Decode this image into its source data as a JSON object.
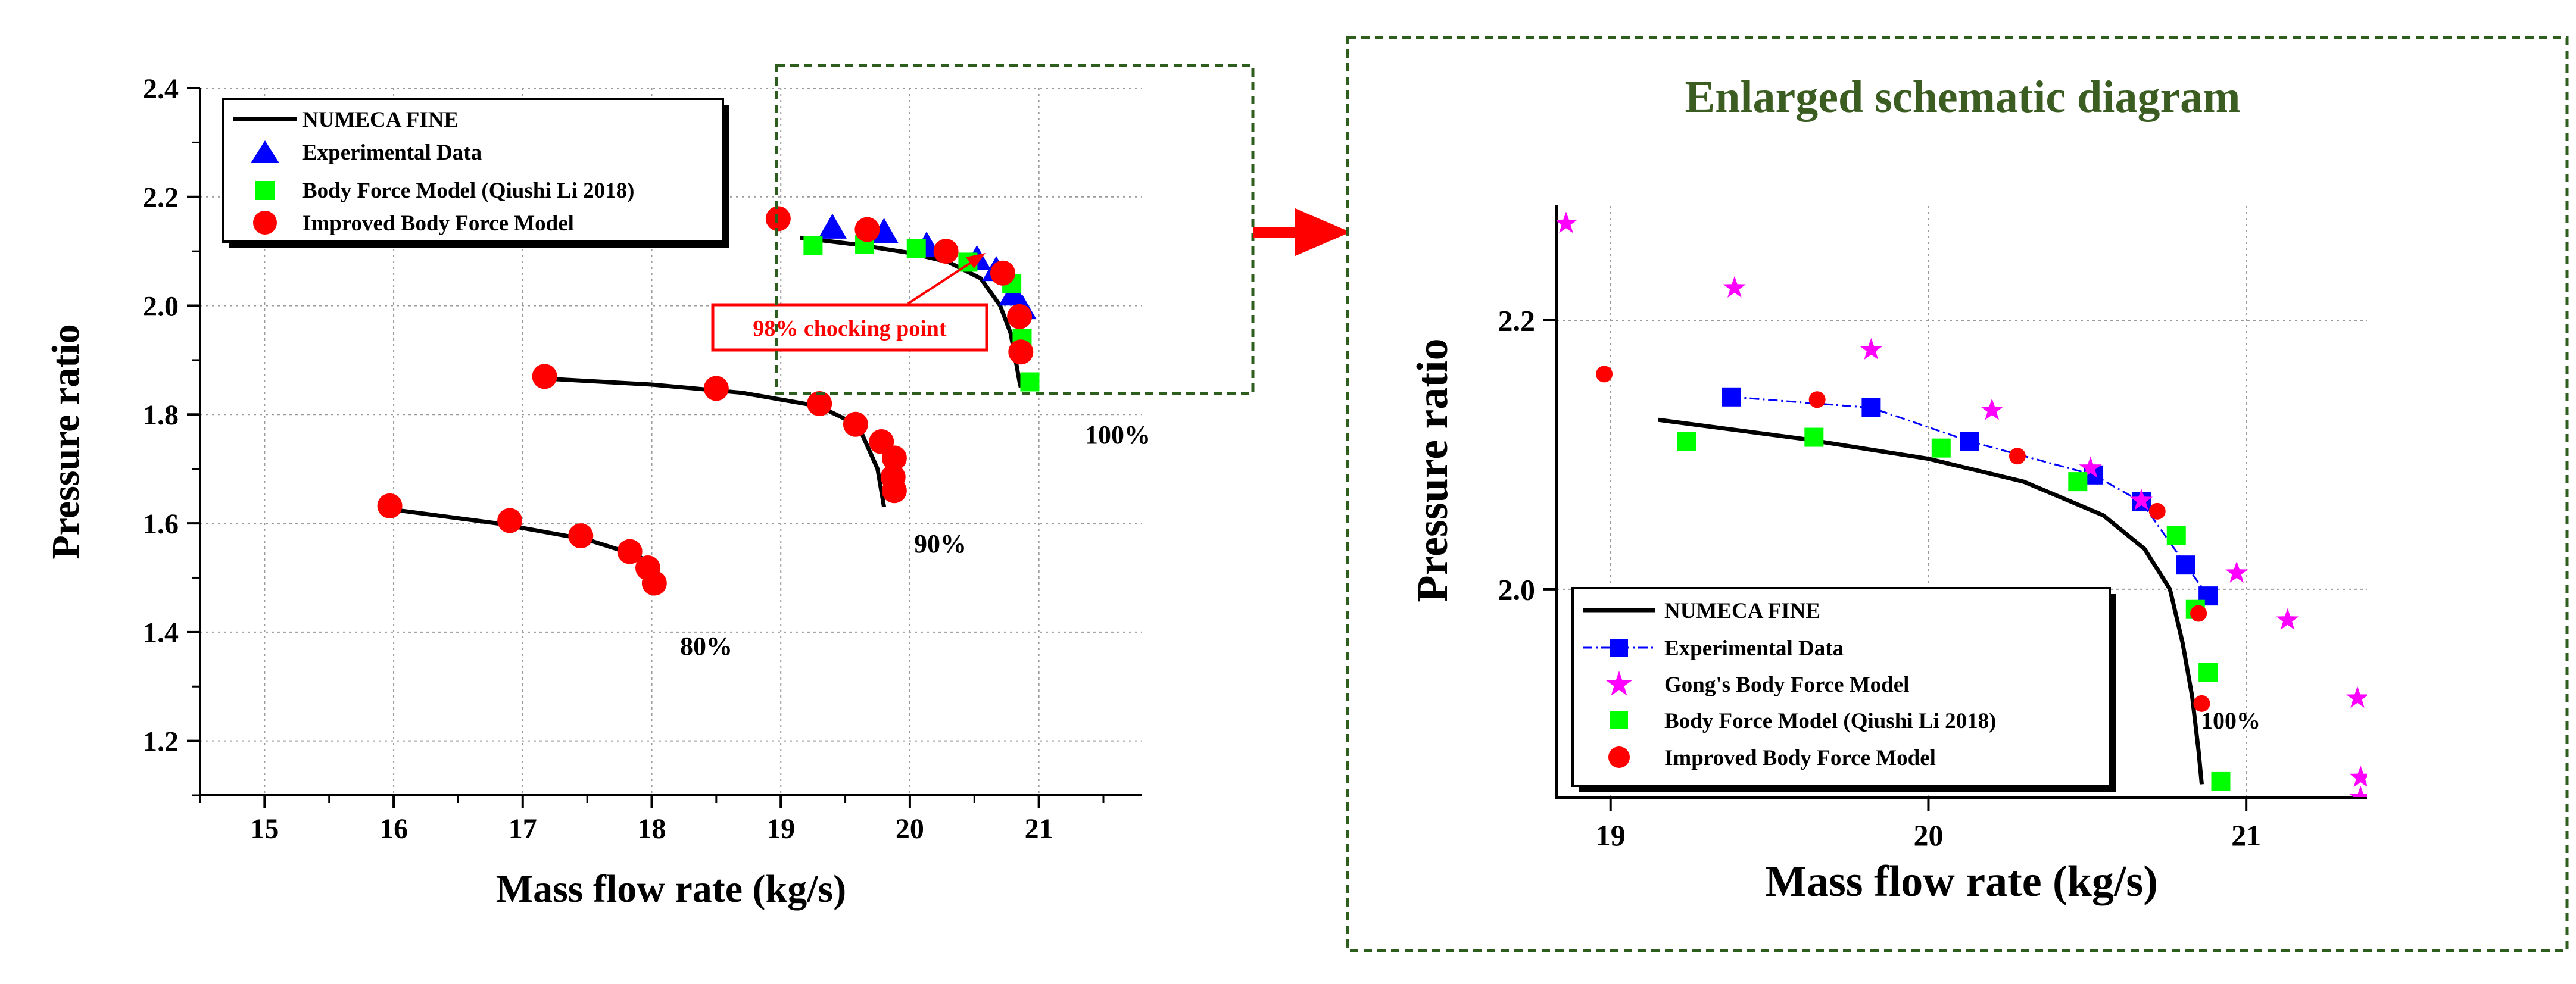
{
  "colors": {
    "model": "#000000",
    "experimental": "#0000ff",
    "qiushi": "#00ff00",
    "improved": "#ff0000",
    "gong": "#ff00ff",
    "dashed_box": "#2e5e1e",
    "title_green": "#3b5d22",
    "grid": "#9a9a9a",
    "callout": "#ff0000"
  },
  "arrow_icon": "right-arrow-icon",
  "chart_data": [
    {
      "type": "scatter",
      "title": "",
      "xlabel": "Mass flow rate (kg/s)",
      "ylabel": "Pressure ratio",
      "xlim": [
        14.5,
        21.8
      ],
      "ylim": [
        1.1,
        2.4
      ],
      "xticks": [
        15,
        16,
        17,
        18,
        19,
        20,
        21
      ],
      "xticklabels": [
        "15",
        "16",
        "17",
        "18",
        "19",
        "20",
        "21"
      ],
      "yticks": [
        1.2,
        1.4,
        1.6,
        1.8,
        2.0,
        2.2,
        2.4
      ],
      "yticklabels": [
        "1.2",
        "1.4",
        "1.6",
        "1.8",
        "2.0",
        "2.2",
        "2.4"
      ],
      "grid": true,
      "legend_position": "top-left",
      "legend": [
        "NUMECA FINE",
        "Experimental Data",
        "Body Force Model (Qiushi Li 2018)",
        "Improved Body Force Model"
      ],
      "series": [
        {
          "name": "NUMECA FINE 100%",
          "kind": "line",
          "x": [
            19.15,
            19.6,
            20.0,
            20.3,
            20.55,
            20.7,
            20.78,
            20.82,
            20.85,
            20.86
          ],
          "y": [
            2.125,
            2.112,
            2.097,
            2.08,
            2.05,
            2.0,
            1.95,
            1.9,
            1.86,
            1.85
          ]
        },
        {
          "name": "NUMECA FINE 90%",
          "kind": "line",
          "x": [
            17.25,
            18.0,
            18.7,
            19.3,
            19.6,
            19.75,
            19.8
          ],
          "y": [
            1.865,
            1.855,
            1.84,
            1.815,
            1.78,
            1.7,
            1.63
          ]
        },
        {
          "name": "NUMECA FINE 80%",
          "kind": "line",
          "x": [
            16.0,
            16.8,
            17.5,
            17.9,
            18.0
          ],
          "y": [
            1.625,
            1.6,
            1.57,
            1.54,
            1.52
          ]
        },
        {
          "name": "Experimental Data",
          "kind": "triangle",
          "x": [
            19.4,
            19.8,
            20.13,
            20.52,
            20.67,
            20.8,
            20.87
          ],
          "y": [
            2.143,
            2.135,
            2.11,
            2.085,
            2.065,
            2.02,
            1.995
          ]
        },
        {
          "name": "Body Force Model (Qiushi Li 2018)",
          "kind": "square",
          "x": [
            19.25,
            19.65,
            20.05,
            20.45,
            20.79,
            20.87,
            20.93
          ],
          "y": [
            2.11,
            2.113,
            2.105,
            2.08,
            2.04,
            1.94,
            1.86
          ]
        },
        {
          "name": "Improved Body Force Model 100%",
          "kind": "circle",
          "x": [
            18.98,
            19.67,
            20.28,
            20.72,
            20.85,
            20.86
          ],
          "y": [
            2.16,
            2.14,
            2.1,
            2.06,
            1.98,
            1.915
          ]
        },
        {
          "name": "Improved Body Force Model 90%",
          "kind": "circle",
          "x": [
            17.17,
            18.5,
            19.3,
            19.58,
            19.78,
            19.88,
            19.87,
            19.88
          ],
          "y": [
            1.87,
            1.848,
            1.82,
            1.782,
            1.75,
            1.72,
            1.685,
            1.66
          ]
        },
        {
          "name": "Improved Body Force Model 80%",
          "kind": "circle",
          "x": [
            15.97,
            16.9,
            17.45,
            17.83,
            17.97,
            18.02
          ],
          "y": [
            1.632,
            1.605,
            1.577,
            1.548,
            1.518,
            1.49
          ]
        }
      ],
      "annotations": [
        {
          "text": "100%",
          "x": 20.95,
          "y": 1.78
        },
        {
          "text": "90%",
          "x": 19.95,
          "y": 1.55
        },
        {
          "text": "80%",
          "x": 18.25,
          "y": 1.34
        },
        {
          "text": "98% chocking point",
          "x": 19.5,
          "y": 1.96
        }
      ]
    },
    {
      "type": "scatter",
      "title": "Enlarged schematic diagram",
      "xlabel": "Mass flow rate (kg/s)",
      "ylabel": "Pressure ratio",
      "xlim": [
        18.83,
        21.38
      ],
      "ylim": [
        1.845,
        2.285
      ],
      "xticks": [
        19,
        20,
        21
      ],
      "xticklabels": [
        "19",
        "20",
        "21"
      ],
      "yticks": [
        2.0,
        2.2
      ],
      "yticklabels": [
        "2.0",
        "2.2"
      ],
      "grid": true,
      "legend_position": "bottom-left",
      "legend": [
        "NUMECA FINE",
        "Experimental Data",
        "Gong's Body Force Model",
        "Body Force Model (Qiushi Li 2018)",
        "Improved Body Force Model"
      ],
      "series": [
        {
          "name": "NUMECA FINE",
          "kind": "line",
          "x": [
            19.15,
            19.6,
            20.0,
            20.3,
            20.55,
            20.68,
            20.76,
            20.8,
            20.83,
            20.85,
            20.86
          ],
          "y": [
            2.126,
            2.112,
            2.097,
            2.08,
            2.055,
            2.03,
            2.0,
            1.96,
            1.92,
            1.88,
            1.855
          ]
        },
        {
          "name": "Experimental Data",
          "kind": "square-dashdot",
          "x": [
            19.38,
            19.82,
            20.13,
            20.52,
            20.67,
            20.81,
            20.88
          ],
          "y": [
            2.143,
            2.135,
            2.11,
            2.085,
            2.065,
            2.018,
            1.995
          ]
        },
        {
          "name": "Gong's Body Force Model",
          "kind": "star",
          "x": [
            18.86,
            19.39,
            19.82,
            20.2,
            20.51,
            20.67,
            20.97,
            21.13,
            21.35,
            21.36,
            21.36
          ],
          "y": [
            2.272,
            2.224,
            2.178,
            2.133,
            2.09,
            2.066,
            2.012,
            1.977,
            1.919,
            1.86,
            1.845
          ]
        },
        {
          "name": "Body Force Model (Qiushi Li 2018)",
          "kind": "square",
          "x": [
            19.24,
            19.64,
            20.04,
            20.47,
            20.78,
            20.84,
            20.88,
            20.92
          ],
          "y": [
            2.11,
            2.113,
            2.105,
            2.08,
            2.04,
            1.985,
            1.938,
            1.857
          ]
        },
        {
          "name": "Improved Body Force Model",
          "kind": "circle",
          "x": [
            18.98,
            19.65,
            20.28,
            20.72,
            20.85,
            20.86
          ],
          "y": [
            2.16,
            2.141,
            2.099,
            2.058,
            1.982,
            1.915
          ]
        }
      ],
      "annotations": [
        {
          "text": "100%",
          "x": 20.96,
          "y": 1.883
        }
      ]
    }
  ]
}
